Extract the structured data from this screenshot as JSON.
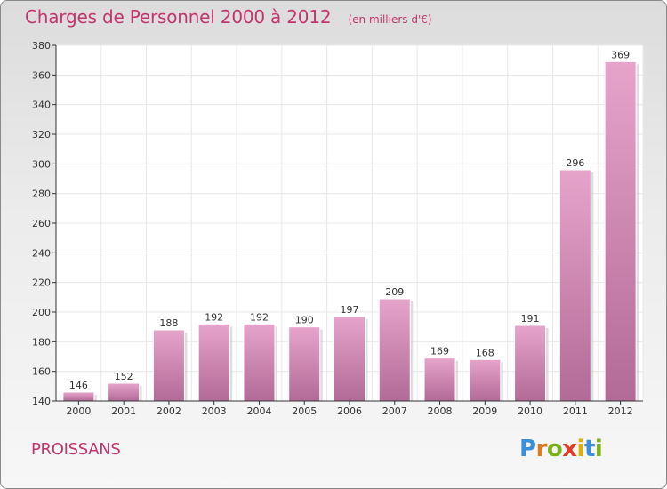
{
  "title": "Charges de Personnel 2000 à 2012",
  "subtitle": "(en milliers d'€)",
  "commune": "PROISSANS",
  "logo": {
    "letters": [
      "P",
      "r",
      "o",
      "x",
      "i",
      "t",
      "i"
    ],
    "colors": [
      "#3a8fd8",
      "#e07a1a",
      "#7ab317",
      "#e03a2a",
      "#e0b000",
      "#3a8fd8",
      "#7ab317"
    ]
  },
  "colors": {
    "title": "#c2356e",
    "bar_top": "#e6a4cb",
    "bar_bottom": "#b26a96",
    "grid": "#e8e8e8"
  },
  "chart_data": {
    "type": "bar",
    "title": "Charges de Personnel 2000 à 2012",
    "subtitle": "(en milliers d'€)",
    "categories": [
      "2000",
      "2001",
      "2002",
      "2003",
      "2004",
      "2005",
      "2006",
      "2007",
      "2008",
      "2009",
      "2010",
      "2011",
      "2012"
    ],
    "values": [
      146,
      152,
      188,
      192,
      192,
      190,
      197,
      209,
      169,
      168,
      191,
      296,
      369
    ],
    "ylim": [
      140,
      380
    ],
    "yticks": [
      140,
      160,
      180,
      200,
      220,
      240,
      260,
      280,
      300,
      320,
      340,
      360,
      380
    ],
    "grid": true,
    "data_labels": true
  }
}
